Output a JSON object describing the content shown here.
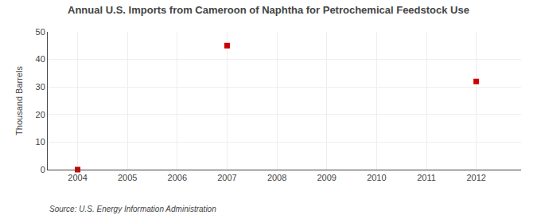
{
  "chart_data": {
    "type": "scatter",
    "title": "Annual U.S. Imports from Cameroon of Naphtha for Petrochemical Feedstock Use",
    "ylabel": "Thousand Barrels",
    "annotations": [
      "Source: U.S. Energy Information Administration"
    ],
    "x": [
      2007,
      2012,
      2004
    ],
    "values": [
      45,
      32,
      0
    ],
    "color": "#cc0000",
    "marker": "square",
    "xlim": [
      2003.4,
      2012.9
    ],
    "xticks": [
      2004,
      2005,
      2006,
      2007,
      2008,
      2009,
      2010,
      2011,
      2012
    ],
    "ylim": [
      0,
      50
    ],
    "yticks": [
      0,
      10,
      20,
      30,
      40,
      50
    ],
    "grid": true
  }
}
